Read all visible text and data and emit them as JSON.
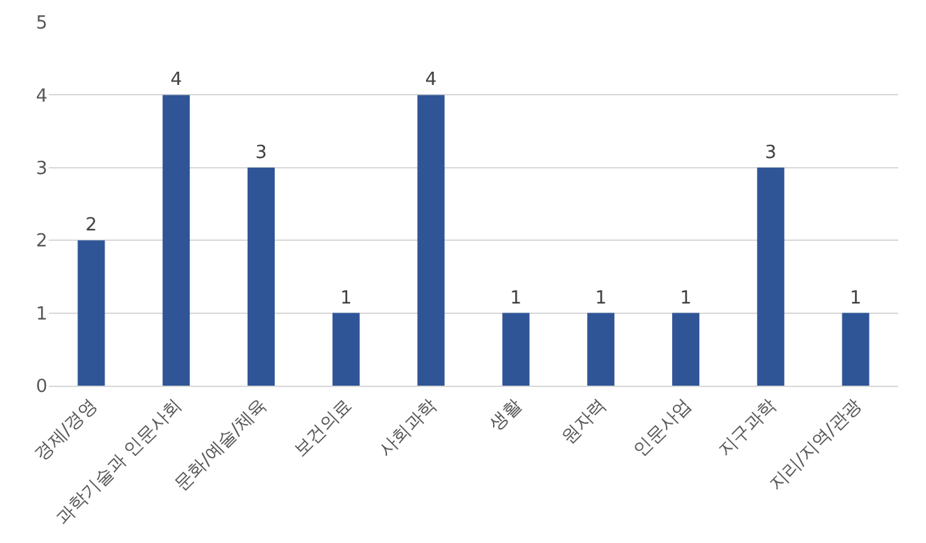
{
  "chart_data": {
    "type": "bar",
    "categories": [
      "경제/경영",
      "과학기술과 인문사회",
      "문화/예술/체육",
      "보건의료",
      "사회과학",
      "생활",
      "원자력",
      "인문사업",
      "지구과학",
      "지리/지역/관광"
    ],
    "values": [
      2,
      4,
      3,
      1,
      4,
      1,
      1,
      1,
      3,
      1
    ],
    "color": "#2f5597",
    "ylim": [
      0,
      5
    ],
    "yticks": [
      0,
      1,
      2,
      3,
      4,
      5
    ],
    "grid": "y",
    "data_labels": true,
    "legend": false
  }
}
